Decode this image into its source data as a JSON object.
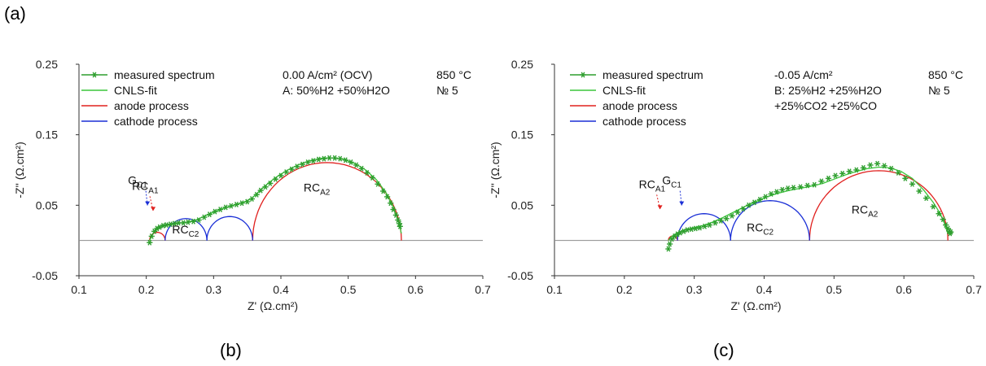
{
  "labels": {
    "a": "(a)",
    "b": "(b)",
    "c": "(c)"
  },
  "colors": {
    "measured": "#2e9e2e",
    "fit": "#3cc63c",
    "anode": "#e0201e",
    "cathode": "#1a2fd6",
    "zero": "#8c8c8c"
  },
  "chart_data": [
    {
      "type": "scatter",
      "xlabel": "Z' (Ω.cm²)",
      "ylabel": "-Z'' (Ω.cm²)",
      "xlim": [
        0.1,
        0.7
      ],
      "ylim": [
        -0.05,
        0.25
      ],
      "xticks": [
        "0.1",
        "0.2",
        "0.3",
        "0.4",
        "0.5",
        "0.6",
        "0.7"
      ],
      "yticks": [
        "-0.05",
        "0.05",
        "0.15",
        "0.25"
      ],
      "legend": [
        "measured spectrum",
        "CNLS-fit",
        "anode process",
        "cathode process"
      ],
      "conditions": [
        "0.00 A/cm² (OCV)",
        "A: 50%H2 +50%H2O"
      ],
      "temperature": "850 °C",
      "sample": "№ 5",
      "annotations": [
        {
          "main": "RC",
          "sub": "A1",
          "x": 0.215,
          "y": 0.035
        },
        {
          "main": "G",
          "sub": "C1",
          "x": 0.255,
          "y": 0.045
        },
        {
          "main": "RC",
          "sub": "C2",
          "x": 0.323,
          "y": 0.01
        },
        {
          "main": "RC",
          "sub": "A2",
          "x": 0.47,
          "y": 0.065
        }
      ],
      "series": [
        {
          "name": "measured spectrum",
          "x": [
            0.205,
            0.208,
            0.212,
            0.216,
            0.22,
            0.225,
            0.23,
            0.236,
            0.242,
            0.248,
            0.255,
            0.262,
            0.27,
            0.278,
            0.286,
            0.294,
            0.302,
            0.31,
            0.318,
            0.326,
            0.334,
            0.342,
            0.35,
            0.357,
            0.364,
            0.37,
            0.377,
            0.384,
            0.392,
            0.4,
            0.408,
            0.416,
            0.424,
            0.432,
            0.44,
            0.448,
            0.456,
            0.464,
            0.472,
            0.48,
            0.488,
            0.496,
            0.504,
            0.512,
            0.52,
            0.528,
            0.536,
            0.544,
            0.552,
            0.558,
            0.563,
            0.567,
            0.571,
            0.574,
            0.576,
            0.577
          ],
          "y": [
            -0.003,
            0.006,
            0.013,
            0.017,
            0.019,
            0.021,
            0.022,
            0.023,
            0.024,
            0.025,
            0.025,
            0.026,
            0.027,
            0.029,
            0.033,
            0.037,
            0.041,
            0.044,
            0.047,
            0.049,
            0.051,
            0.053,
            0.055,
            0.059,
            0.065,
            0.071,
            0.076,
            0.081,
            0.087,
            0.092,
            0.097,
            0.101,
            0.105,
            0.108,
            0.111,
            0.113,
            0.115,
            0.116,
            0.117,
            0.117,
            0.116,
            0.114,
            0.111,
            0.107,
            0.102,
            0.096,
            0.089,
            0.08,
            0.07,
            0.062,
            0.053,
            0.044,
            0.036,
            0.029,
            0.024,
            0.02
          ]
        },
        {
          "name": "CNLS-fit",
          "x": [
            0.205,
            0.21,
            0.216,
            0.224,
            0.234,
            0.246,
            0.26,
            0.274,
            0.288,
            0.302,
            0.316,
            0.33,
            0.344,
            0.356,
            0.368,
            0.382,
            0.398,
            0.414,
            0.43,
            0.446,
            0.462,
            0.478,
            0.494,
            0.51,
            0.526,
            0.542,
            0.556,
            0.566,
            0.574,
            0.579
          ],
          "y": [
            0.0,
            0.01,
            0.016,
            0.02,
            0.022,
            0.024,
            0.026,
            0.029,
            0.035,
            0.041,
            0.046,
            0.05,
            0.054,
            0.059,
            0.07,
            0.082,
            0.093,
            0.102,
            0.109,
            0.114,
            0.117,
            0.117,
            0.115,
            0.109,
            0.1,
            0.086,
            0.068,
            0.05,
            0.03,
            0.01
          ]
        },
        {
          "name": "anode process",
          "arcs": [
            [
              0.205,
              0.228
            ],
            [
              0.358,
              0.579
            ]
          ]
        },
        {
          "name": "cathode process",
          "arcs": [
            [
              0.228,
              0.29
            ],
            [
              0.29,
              0.358
            ]
          ]
        }
      ]
    },
    {
      "type": "scatter",
      "xlabel": "Z' (Ω.cm²)",
      "ylabel": "-Z'' (Ω.cm²)",
      "xlim": [
        0.1,
        0.7
      ],
      "ylim": [
        -0.05,
        0.25
      ],
      "xticks": [
        "0.1",
        "0.2",
        "0.3",
        "0.4",
        "0.5",
        "0.6",
        "0.7"
      ],
      "yticks": [
        "-0.05",
        "0.05",
        "0.15",
        "0.25"
      ],
      "legend": [
        "measured spectrum",
        "CNLS-fit",
        "anode process",
        "cathode process"
      ],
      "conditions": [
        "-0.05 A/cm²",
        "B: 25%H2 +25%H2O",
        "+25%CO2 +25%CO"
      ],
      "temperature": "850 °C",
      "sample": "№ 5",
      "annotations": [
        {
          "main": "RC",
          "sub": "A1",
          "x": 0.265,
          "y": 0.035
        },
        {
          "main": "G",
          "sub": "C1",
          "x": 0.31,
          "y": 0.045
        },
        {
          "main": "RC",
          "sub": "C2",
          "x": 0.41,
          "y": 0.013
        },
        {
          "main": "RC",
          "sub": "A2",
          "x": 0.56,
          "y": 0.038
        }
      ],
      "series": [
        {
          "name": "measured spectrum",
          "x": [
            0.263,
            0.265,
            0.268,
            0.272,
            0.276,
            0.28,
            0.285,
            0.29,
            0.296,
            0.302,
            0.308,
            0.315,
            0.322,
            0.33,
            0.338,
            0.346,
            0.354,
            0.362,
            0.37,
            0.378,
            0.386,
            0.394,
            0.402,
            0.41,
            0.418,
            0.426,
            0.434,
            0.442,
            0.452,
            0.462,
            0.472,
            0.482,
            0.492,
            0.502,
            0.512,
            0.522,
            0.532,
            0.542,
            0.552,
            0.562,
            0.572,
            0.582,
            0.592,
            0.602,
            0.612,
            0.622,
            0.632,
            0.642,
            0.65,
            0.656,
            0.66,
            0.663,
            0.665,
            0.666,
            0.667
          ],
          "y": [
            -0.012,
            -0.005,
            0.002,
            0.006,
            0.009,
            0.011,
            0.013,
            0.015,
            0.016,
            0.017,
            0.018,
            0.02,
            0.022,
            0.025,
            0.028,
            0.031,
            0.035,
            0.04,
            0.045,
            0.05,
            0.054,
            0.058,
            0.062,
            0.066,
            0.069,
            0.072,
            0.074,
            0.075,
            0.076,
            0.078,
            0.079,
            0.084,
            0.088,
            0.092,
            0.095,
            0.098,
            0.1,
            0.103,
            0.107,
            0.109,
            0.106,
            0.102,
            0.096,
            0.088,
            0.08,
            0.07,
            0.06,
            0.048,
            0.038,
            0.03,
            0.022,
            0.017,
            0.013,
            0.01,
            0.012
          ]
        },
        {
          "name": "CNLS-fit",
          "x": [
            0.263,
            0.268,
            0.276,
            0.286,
            0.298,
            0.312,
            0.326,
            0.34,
            0.356,
            0.372,
            0.388,
            0.404,
            0.42,
            0.436,
            0.452,
            0.468,
            0.484,
            0.5,
            0.516,
            0.532,
            0.548,
            0.564,
            0.58,
            0.596,
            0.612,
            0.628,
            0.642,
            0.652,
            0.659,
            0.663
          ],
          "y": [
            0.0,
            0.006,
            0.011,
            0.015,
            0.018,
            0.021,
            0.026,
            0.032,
            0.04,
            0.048,
            0.055,
            0.062,
            0.067,
            0.071,
            0.074,
            0.077,
            0.081,
            0.087,
            0.093,
            0.098,
            0.102,
            0.104,
            0.103,
            0.098,
            0.088,
            0.072,
            0.054,
            0.038,
            0.022,
            0.01
          ]
        },
        {
          "name": "anode process",
          "arcs": [
            [
              0.263,
              0.276
            ],
            [
              0.465,
              0.663
            ]
          ]
        },
        {
          "name": "cathode process",
          "arcs": [
            [
              0.276,
              0.352
            ],
            [
              0.352,
              0.465
            ]
          ]
        }
      ]
    }
  ]
}
